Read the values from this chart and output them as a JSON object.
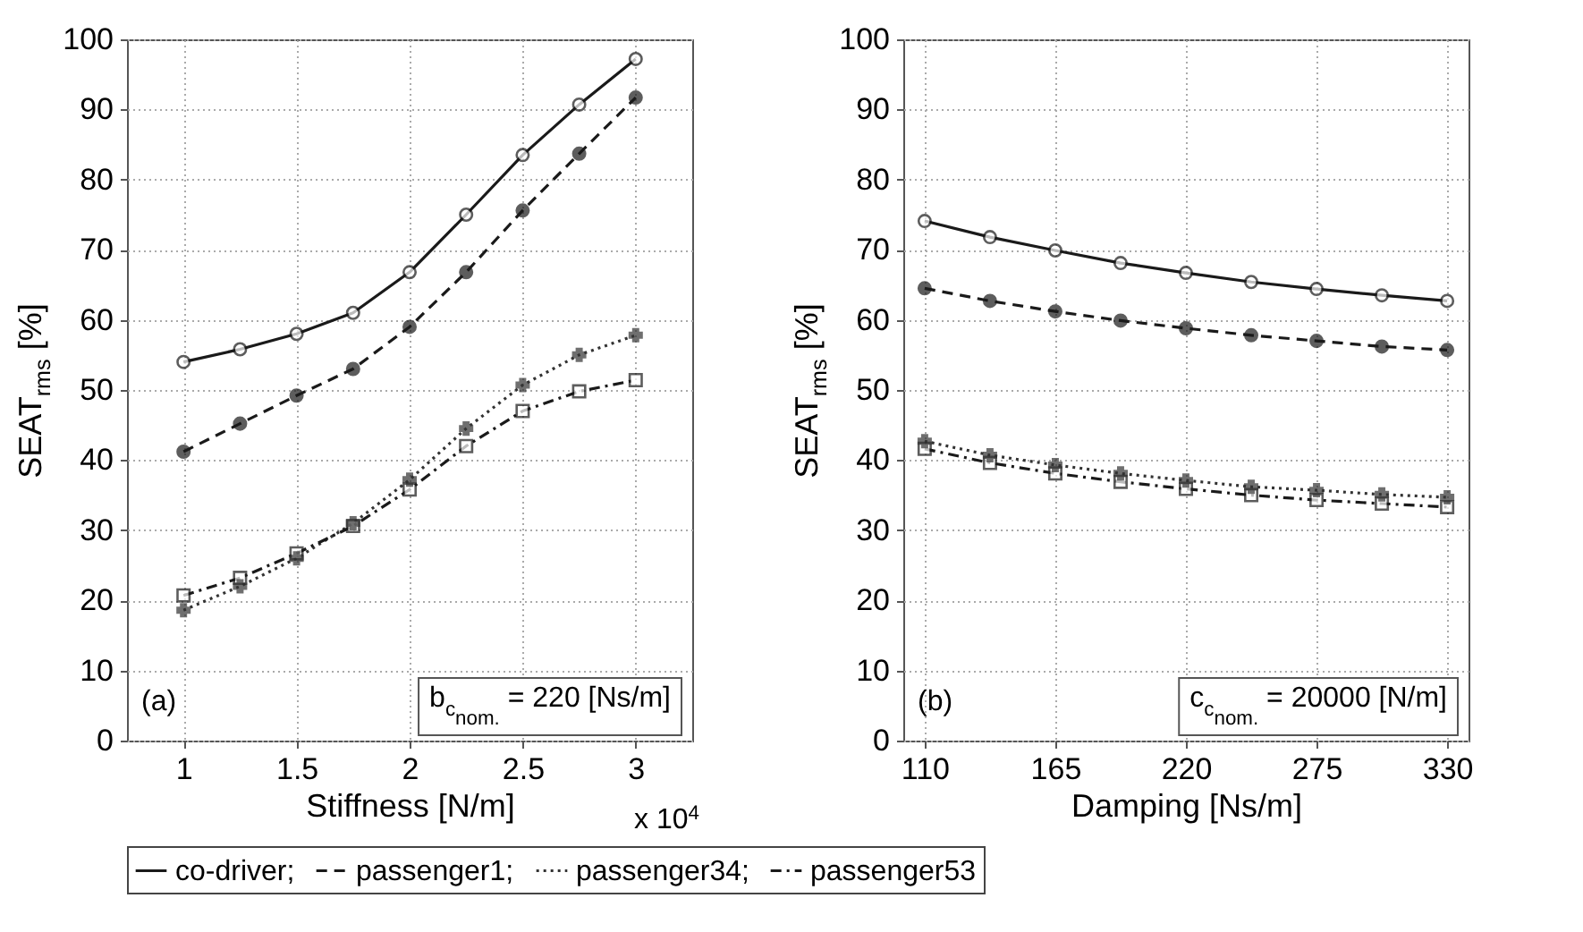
{
  "chart_data": [
    {
      "type": "line",
      "xlabel": "Stiffness [N/m]",
      "ylabel": "SEAT$_{rms}$ [%]",
      "x": [
        1,
        1.25,
        1.5,
        1.75,
        2,
        2.25,
        2.5,
        2.75,
        3
      ],
      "series": [
        {
          "name": "co-driver;",
          "color": "#1a1a1a",
          "marker": "circle",
          "line_style": "solid",
          "values": [
            54,
            55.8,
            58,
            61,
            66.8,
            75,
            83.5,
            90.7,
            97.2
          ]
        },
        {
          "name": "passenger1;",
          "color": "#1a1a1a",
          "marker": "filled-circle",
          "line_style": "dashed",
          "values": [
            41.2,
            45.2,
            49.2,
            53,
            59,
            66.8,
            75.6,
            83.7,
            91.7
          ]
        },
        {
          "name": "passenger34;",
          "color": "#333333",
          "marker": "cross",
          "line_style": "dotted",
          "values": [
            18.6,
            22,
            26,
            31,
            37.2,
            44.5,
            50.7,
            55,
            57.8
          ]
        },
        {
          "name": "passenger53",
          "color": "#1a1a1a",
          "marker": "square",
          "line_style": "dashdot",
          "values": [
            20.7,
            23.2,
            26.7,
            30.6,
            35.8,
            42,
            47,
            49.8,
            51.4
          ]
        }
      ],
      "xlim": [
        0.75,
        3.25
      ],
      "xticks": [
        1,
        1.5,
        2,
        2.5,
        3
      ],
      "ylim": [
        0,
        100
      ],
      "yticks": [
        0,
        10,
        20,
        30,
        40,
        50,
        60,
        70,
        80,
        90,
        100
      ],
      "grid": true,
      "legend": "bottom",
      "annotations": [
        "(a)",
        "b$_{c}$$_{nom.}$ = 220 [Ns/m]",
        "x 10$^{4}$"
      ]
    },
    {
      "type": "line",
      "xlabel": "Damping [Ns/m]",
      "ylabel": "SEAT$_{rms}$ [%]",
      "x": [
        110,
        137.5,
        165,
        192.5,
        220,
        247.5,
        275,
        302.5,
        330
      ],
      "series": [
        {
          "name": "co-driver;",
          "color": "#1a1a1a",
          "marker": "circle",
          "line_style": "solid",
          "values": [
            74.1,
            71.8,
            69.9,
            68.1,
            66.7,
            65.4,
            64.4,
            63.5,
            62.7
          ]
        },
        {
          "name": "passenger1;",
          "color": "#1a1a1a",
          "marker": "filled-circle",
          "line_style": "dashed",
          "values": [
            64.5,
            62.7,
            61.2,
            59.9,
            58.8,
            57.8,
            57,
            56.2,
            55.7
          ]
        },
        {
          "name": "passenger34;",
          "color": "#333333",
          "marker": "cross",
          "line_style": "dotted",
          "values": [
            42.7,
            40.7,
            39.3,
            38.1,
            37.1,
            36.2,
            35.7,
            35.1,
            34.7
          ]
        },
        {
          "name": "passenger53",
          "color": "#1a1a1a",
          "marker": "square",
          "line_style": "dashdot",
          "values": [
            41.6,
            39.6,
            38.1,
            36.9,
            35.9,
            35,
            34.3,
            33.8,
            33.3
          ]
        }
      ],
      "xlim": [
        101,
        339
      ],
      "xticks": [
        110,
        165,
        220,
        275,
        330
      ],
      "ylim": [
        0,
        100
      ],
      "yticks": [
        0,
        10,
        20,
        30,
        40,
        50,
        60,
        70,
        80,
        90,
        100
      ],
      "grid": true,
      "annotations": [
        "(b)",
        "c$_{c}$$_{nom.}$ = 20000 [N/m]"
      ]
    }
  ]
}
